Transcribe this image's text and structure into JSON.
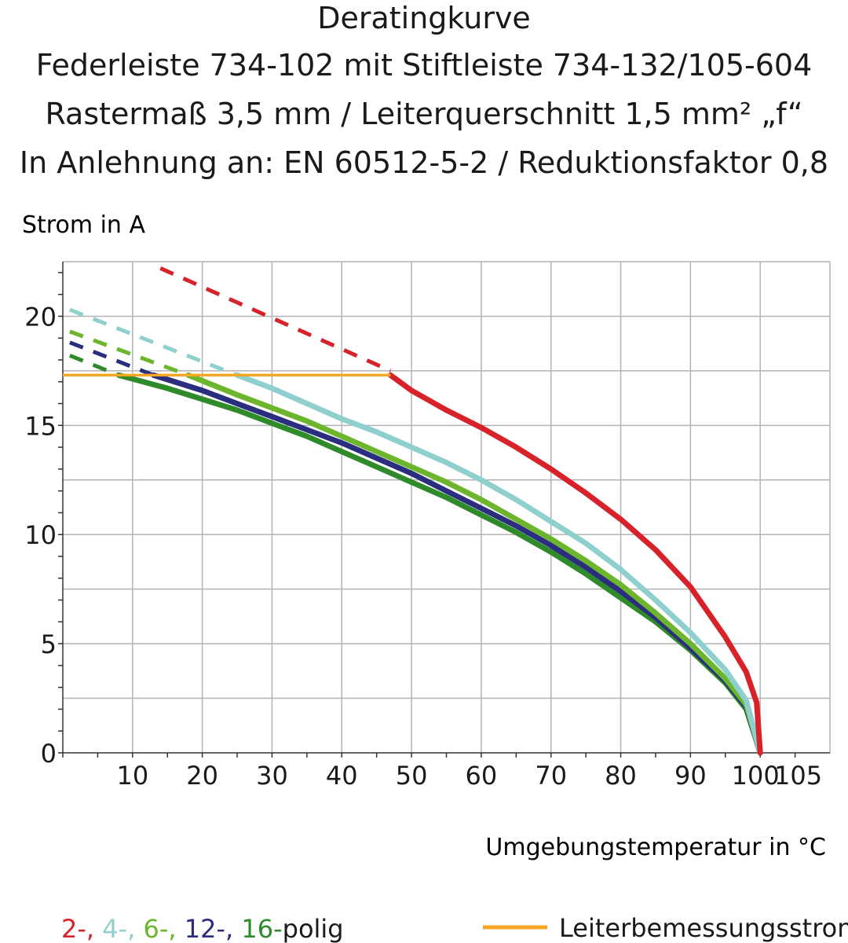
{
  "chart_data": {
    "type": "line",
    "title_lines": [
      "Deratingkurve",
      "Federleiste 734-102 mit Stiftleiste 734-132/105-604",
      "Rastermaß 3,5 mm / Leiterquerschnitt 1,5 mm² „f“",
      "In Anlehnung an: EN 60512-5-2 / Reduktionsfaktor 0,8"
    ],
    "ylabel": "Strom in A",
    "xlabel": "Umgebungstemperatur in °C",
    "xlim": [
      0,
      110
    ],
    "ylim": [
      0,
      22.5
    ],
    "x_ticks": [
      10,
      20,
      30,
      40,
      50,
      60,
      70,
      80,
      90,
      100,
      105
    ],
    "y_ticks": [
      0,
      5,
      10,
      15,
      20
    ],
    "grid": true,
    "rated_current": {
      "name": "Leiterbemessungsstrom",
      "color": "#f5a623",
      "x": [
        0,
        47
      ],
      "y": [
        17.3,
        17.3
      ]
    },
    "series": [
      {
        "label": "2-,",
        "color": "#d7222a",
        "dashed": {
          "x": [
            14,
            47
          ],
          "y": [
            22.2,
            17.5
          ]
        },
        "x": [
          47,
          50,
          55,
          60,
          65,
          70,
          75,
          80,
          85,
          90,
          95,
          98,
          99.5,
          100
        ],
        "y": [
          17.3,
          16.6,
          15.7,
          14.9,
          14.0,
          13.0,
          11.9,
          10.7,
          9.3,
          7.6,
          5.3,
          3.7,
          2.3,
          0
        ]
      },
      {
        "label": "4-,",
        "color": "#8fd0cf",
        "dashed": {
          "x": [
            1,
            25
          ],
          "y": [
            20.3,
            17.3
          ]
        },
        "x": [
          25,
          30,
          35,
          40,
          45,
          50,
          55,
          60,
          65,
          70,
          75,
          80,
          85,
          90,
          95,
          98,
          100
        ],
        "y": [
          17.3,
          16.7,
          16.0,
          15.3,
          14.7,
          14.0,
          13.3,
          12.5,
          11.6,
          10.6,
          9.6,
          8.4,
          7.0,
          5.5,
          3.8,
          2.4,
          0
        ]
      },
      {
        "label": "6-,",
        "color": "#6cb52d",
        "dashed": {
          "x": [
            1,
            18
          ],
          "y": [
            19.3,
            17.3
          ]
        },
        "x": [
          18,
          25,
          30,
          35,
          40,
          45,
          50,
          55,
          60,
          65,
          70,
          75,
          80,
          85,
          90,
          95,
          98,
          100
        ],
        "y": [
          17.3,
          16.4,
          15.8,
          15.2,
          14.5,
          13.8,
          13.1,
          12.4,
          11.6,
          10.7,
          9.8,
          8.8,
          7.7,
          6.4,
          5.0,
          3.4,
          2.2,
          0
        ]
      },
      {
        "label": "12-,",
        "color": "#2b2e7f",
        "dashed": {
          "x": [
            1,
            13
          ],
          "y": [
            18.8,
            17.3
          ]
        },
        "x": [
          13,
          20,
          25,
          30,
          35,
          40,
          45,
          50,
          55,
          60,
          65,
          70,
          75,
          80,
          85,
          90,
          95,
          98,
          100
        ],
        "y": [
          17.3,
          16.6,
          16.0,
          15.4,
          14.8,
          14.2,
          13.5,
          12.8,
          12.0,
          11.2,
          10.4,
          9.5,
          8.5,
          7.4,
          6.2,
          4.8,
          3.3,
          2.1,
          0
        ]
      },
      {
        "label": "16-",
        "color": "#2f8a2a",
        "dashed": {
          "x": [
            1,
            8
          ],
          "y": [
            18.2,
            17.3
          ]
        },
        "x": [
          8,
          15,
          20,
          25,
          30,
          35,
          40,
          45,
          50,
          55,
          60,
          65,
          70,
          75,
          80,
          85,
          90,
          95,
          98,
          100
        ],
        "y": [
          17.3,
          16.7,
          16.2,
          15.7,
          15.1,
          14.5,
          13.8,
          13.1,
          12.4,
          11.7,
          10.9,
          10.1,
          9.2,
          8.2,
          7.1,
          6.0,
          4.7,
          3.2,
          2.0,
          0
        ]
      }
    ],
    "legend_suffix": "polig"
  }
}
